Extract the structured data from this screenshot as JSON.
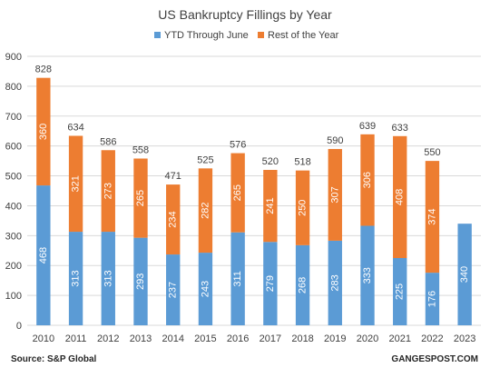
{
  "chart_data": {
    "type": "bar",
    "stacked": true,
    "title": "US Bankruptcy Fillings by Year",
    "categories": [
      "2010",
      "2011",
      "2012",
      "2013",
      "2014",
      "2015",
      "2016",
      "2017",
      "2018",
      "2019",
      "2020",
      "2021",
      "2022",
      "2023"
    ],
    "series": [
      {
        "name": "YTD Through June",
        "color": "#5b9bd5",
        "values": [
          468,
          313,
          313,
          293,
          237,
          243,
          311,
          279,
          268,
          283,
          333,
          225,
          176,
          340
        ]
      },
      {
        "name": "Rest of the Year",
        "color": "#ed7d31",
        "values": [
          360,
          321,
          273,
          265,
          234,
          282,
          265,
          241,
          250,
          307,
          306,
          408,
          374,
          null
        ]
      }
    ],
    "totals": [
      828,
      634,
      586,
      558,
      471,
      525,
      576,
      520,
      518,
      590,
      639,
      633,
      550,
      null
    ],
    "ylim": [
      0,
      900
    ],
    "yticks": [
      0,
      100,
      200,
      300,
      400,
      500,
      600,
      700,
      800,
      900
    ],
    "grid": true,
    "legend": "top",
    "source": "Source: S&P Global",
    "watermark": "GANGESPOST.COM"
  }
}
